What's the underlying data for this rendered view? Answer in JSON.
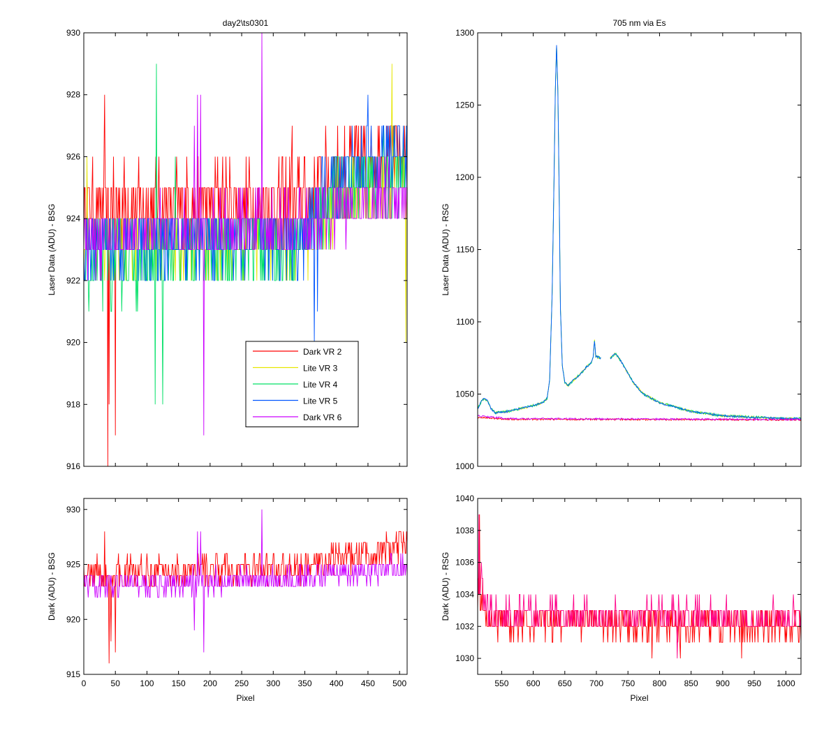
{
  "colors": {
    "dark_vr2": "#ff0000",
    "lite_vr3": "#e6e600",
    "lite_vr4": "#00e066",
    "lite_vr5": "#0055ff",
    "dark_vr6": "#cc00ff",
    "dark_rsg": "#ff0088"
  },
  "chart_data": [
    {
      "id": "bsg_laser",
      "type": "line",
      "title": "day2\\ts0301",
      "xlabel": "",
      "ylabel": "Laser Data (ADU) - BSG",
      "xlim": [
        0,
        512
      ],
      "ylim": [
        916,
        930
      ],
      "xticks": [
        0,
        50,
        100,
        150,
        200,
        250,
        300,
        350,
        400,
        450,
        500
      ],
      "xtick_labels": [],
      "yticks": [
        916,
        918,
        920,
        922,
        924,
        926,
        928,
        930
      ],
      "ytick_labels": [
        "916",
        "918",
        "920",
        "922",
        "924",
        "926",
        "928",
        "930"
      ],
      "legend": {
        "position": "lower-right",
        "entries": [
          "Dark VR 2",
          "Lite VR 3",
          "Lite VR 4",
          "Lite VR 5",
          "Dark VR 6"
        ]
      },
      "series": [
        {
          "name": "Dark VR 2",
          "color_key": "dark_vr2",
          "kind": "noise",
          "baseline": [
            [
              0,
              924.3
            ],
            [
              350,
              924.6
            ],
            [
              400,
              925.6
            ],
            [
              512,
              926.2
            ]
          ],
          "amp": 1.3,
          "spikes": [
            [
              33,
              928
            ],
            [
              38,
              916
            ],
            [
              40,
              918
            ],
            [
              50,
              917
            ],
            [
              330,
              927
            ]
          ]
        },
        {
          "name": "Lite VR 3",
          "color_key": "lite_vr3",
          "kind": "noise",
          "baseline": [
            [
              0,
              923.2
            ],
            [
              350,
              923.4
            ],
            [
              400,
              924.6
            ],
            [
              512,
              925.4
            ]
          ],
          "amp": 1.1,
          "spikes": [
            [
              5,
              926
            ],
            [
              488,
              929
            ],
            [
              510,
              920
            ]
          ]
        },
        {
          "name": "Lite VR 4",
          "color_key": "lite_vr4",
          "kind": "noise",
          "baseline": [
            [
              0,
              922.4
            ],
            [
              150,
              922.8
            ],
            [
              350,
              923.4
            ],
            [
              400,
              924.8
            ],
            [
              512,
              925.6
            ]
          ],
          "amp": 1.2,
          "spikes": [
            [
              115,
              929
            ],
            [
              113,
              918
            ],
            [
              125,
              918
            ],
            [
              145,
              926
            ]
          ]
        },
        {
          "name": "Lite VR 5",
          "color_key": "lite_vr5",
          "kind": "noise",
          "baseline": [
            [
              0,
              923.2
            ],
            [
              350,
              923.4
            ],
            [
              400,
              925.4
            ],
            [
              512,
              926.4
            ]
          ],
          "amp": 1.1,
          "spikes": [
            [
              365,
              920
            ],
            [
              370,
              921
            ],
            [
              450,
              928
            ],
            [
              500,
              927
            ]
          ]
        },
        {
          "name": "Dark VR 6",
          "color_key": "dark_vr6",
          "kind": "noise",
          "baseline": [
            [
              0,
              923.4
            ],
            [
              350,
              923.8
            ],
            [
              400,
              924.2
            ],
            [
              512,
              924.9
            ]
          ],
          "amp": 1.0,
          "spikes": [
            [
              282,
              930
            ],
            [
              180,
              928
            ],
            [
              185,
              928
            ],
            [
              190,
              917
            ],
            [
              175,
              927
            ]
          ]
        }
      ]
    },
    {
      "id": "rsg_laser",
      "type": "line",
      "title": "705 nm via Es",
      "xlabel": "",
      "ylabel": "Laser Data (ADU) - RSG",
      "xlim": [
        512,
        1024
      ],
      "ylim": [
        1000,
        1300
      ],
      "xticks": [
        550,
        600,
        650,
        700,
        750,
        800,
        850,
        900,
        950,
        1000
      ],
      "xtick_labels": [],
      "yticks": [
        1000,
        1050,
        1100,
        1150,
        1200,
        1250,
        1300
      ],
      "ytick_labels": [
        "1000",
        "1050",
        "1100",
        "1150",
        "1200",
        "1250",
        "1300"
      ],
      "series": [
        {
          "name": "Lite VR 3",
          "color_key": "lite_vr3",
          "kind": "spectrum",
          "noise": 0.8
        },
        {
          "name": "Lite VR 4",
          "color_key": "lite_vr4",
          "kind": "spectrum",
          "noise": 0.9
        },
        {
          "name": "Lite VR 5",
          "color_key": "lite_vr5",
          "kind": "spectrum",
          "noise": 0.7
        },
        {
          "name": "Dark VR 2",
          "color_key": "dark_vr2",
          "kind": "flat",
          "baseline": [
            [
              512,
              1034
            ],
            [
              560,
              1032.6
            ],
            [
              1024,
              1032.2
            ]
          ],
          "amp": 0.6
        },
        {
          "name": "Dark VR 6",
          "color_key": "dark_vr6",
          "kind": "flat",
          "baseline": [
            [
              512,
              1035
            ],
            [
              560,
              1033
            ],
            [
              1024,
              1032.4
            ]
          ],
          "amp": 0.6
        }
      ],
      "spectrum_points": [
        [
          512,
          1040
        ],
        [
          518,
          1045
        ],
        [
          522,
          1047
        ],
        [
          528,
          1045
        ],
        [
          533,
          1040
        ],
        [
          540,
          1037
        ],
        [
          560,
          1038
        ],
        [
          580,
          1040
        ],
        [
          600,
          1042
        ],
        [
          615,
          1044
        ],
        [
          622,
          1047
        ],
        [
          626,
          1060
        ],
        [
          630,
          1120
        ],
        [
          633,
          1200
        ],
        [
          635,
          1260
        ],
        [
          637,
          1292
        ],
        [
          639,
          1260
        ],
        [
          641,
          1190
        ],
        [
          643,
          1110
        ],
        [
          646,
          1070
        ],
        [
          650,
          1058
        ],
        [
          655,
          1056
        ],
        [
          665,
          1060
        ],
        [
          675,
          1064
        ],
        [
          685,
          1069
        ],
        [
          692,
          1072
        ],
        [
          695,
          1076
        ],
        [
          697,
          1087
        ],
        [
          699,
          1076
        ],
        [
          706,
          1075
        ],
        [
          720,
          1074
        ],
        [
          730,
          1078
        ],
        [
          737,
          1074
        ],
        [
          745,
          1068
        ],
        [
          760,
          1057
        ],
        [
          775,
          1050
        ],
        [
          800,
          1044
        ],
        [
          850,
          1038
        ],
        [
          900,
          1035
        ],
        [
          950,
          1034
        ],
        [
          1000,
          1033
        ],
        [
          1024,
          1033
        ]
      ],
      "spectrum_gap": [
        707,
        722
      ]
    },
    {
      "id": "bsg_dark",
      "type": "line",
      "title": "",
      "xlabel": "Pixel",
      "ylabel": "Dark (ADU) - BSG",
      "xlim": [
        0,
        512
      ],
      "ylim": [
        915,
        931
      ],
      "xticks": [
        0,
        50,
        100,
        150,
        200,
        250,
        300,
        350,
        400,
        450,
        500
      ],
      "xtick_labels": [
        "0",
        "50",
        "100",
        "150",
        "200",
        "250",
        "300",
        "350",
        "400",
        "450",
        "500"
      ],
      "yticks": [
        915,
        920,
        925,
        930
      ],
      "ytick_labels": [
        "915",
        "920",
        "925",
        "930"
      ],
      "series": [
        {
          "name": "Dark VR 2",
          "color_key": "dark_vr2",
          "kind": "noise",
          "baseline": [
            [
              0,
              924.2
            ],
            [
              350,
              924.7
            ],
            [
              400,
              925.6
            ],
            [
              512,
              926.5
            ]
          ],
          "amp": 1.4,
          "spikes": [
            [
              33,
              928
            ],
            [
              40,
              916
            ],
            [
              43,
              918
            ],
            [
              50,
              917
            ]
          ]
        },
        {
          "name": "Dark VR 6",
          "color_key": "dark_vr6",
          "kind": "noise",
          "baseline": [
            [
              0,
              923.2
            ],
            [
              350,
              923.7
            ],
            [
              400,
              924.1
            ],
            [
              512,
              924.8
            ]
          ],
          "amp": 1.1,
          "spikes": [
            [
              282,
              930
            ],
            [
              180,
              928
            ],
            [
              185,
              928
            ],
            [
              190,
              917
            ],
            [
              175,
              919
            ]
          ]
        }
      ]
    },
    {
      "id": "rsg_dark",
      "type": "line",
      "title": "",
      "xlabel": "Pixel",
      "ylabel": "Dark (ADU) - RSG",
      "xlim": [
        512,
        1024
      ],
      "ylim": [
        1029,
        1040
      ],
      "xticks": [
        550,
        600,
        650,
        700,
        750,
        800,
        850,
        900,
        950,
        1000
      ],
      "xtick_labels": [
        "550",
        "600",
        "650",
        "700",
        "750",
        "800",
        "850",
        "900",
        "950",
        "1000"
      ],
      "yticks": [
        1030,
        1032,
        1034,
        1036,
        1038,
        1040
      ],
      "ytick_labels": [
        "1030",
        "1032",
        "1034",
        "1036",
        "1038",
        "1040"
      ],
      "series": [
        {
          "name": "Dark VR 2",
          "color_key": "dark_vr2",
          "kind": "noise",
          "baseline": [
            [
              512,
              1034
            ],
            [
              530,
              1032.4
            ],
            [
              1024,
              1032.0
            ]
          ],
          "amp": 1.0,
          "spikes": [
            [
              515,
              1039
            ],
            [
              520,
              1035
            ],
            [
              788,
              1030
            ],
            [
              833,
              1030
            ],
            [
              930,
              1030
            ]
          ]
        },
        {
          "name": "Dark VR 6",
          "color_key": "dark_rsg",
          "kind": "noise",
          "baseline": [
            [
              512,
              1035
            ],
            [
              530,
              1032.8
            ],
            [
              1024,
              1032.5
            ]
          ],
          "amp": 1.0,
          "spikes": [
            [
              514,
              1039
            ],
            [
              518,
              1036
            ],
            [
              685,
              1034
            ],
            [
              828,
              1030
            ],
            [
              980,
              1034
            ]
          ]
        }
      ]
    }
  ]
}
